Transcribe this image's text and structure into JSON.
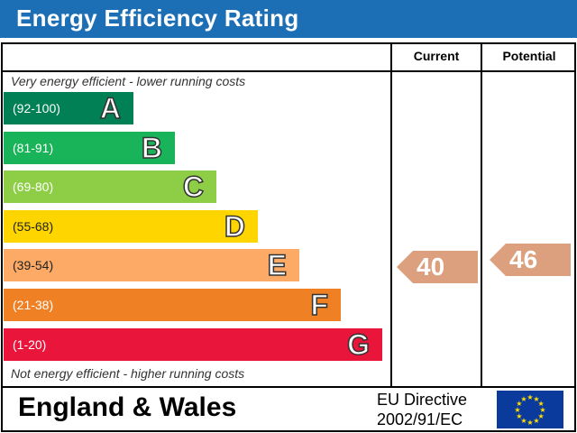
{
  "title": "Energy Efficiency Rating",
  "columns": {
    "current": "Current",
    "potential": "Potential"
  },
  "captions": {
    "top": "Very energy efficient - lower running costs",
    "bottom": "Not energy efficient - higher running costs"
  },
  "footer": {
    "region": "England & Wales",
    "directive_line1": "EU Directive",
    "directive_line2": "2002/91/EC"
  },
  "icons": {
    "flag": "eu-flag-icon"
  },
  "chart_data": {
    "type": "bar",
    "categories": [
      "A",
      "B",
      "C",
      "D",
      "E",
      "F",
      "G"
    ],
    "bands": [
      {
        "letter": "A",
        "range": "(92-100)",
        "min": 92,
        "max": 100,
        "color": "#008054"
      },
      {
        "letter": "B",
        "range": "(81-91)",
        "min": 81,
        "max": 91,
        "color": "#19b459"
      },
      {
        "letter": "C",
        "range": "(69-80)",
        "min": 69,
        "max": 80,
        "color": "#8dce46"
      },
      {
        "letter": "D",
        "range": "(55-68)",
        "min": 55,
        "max": 68,
        "color": "#ffd500"
      },
      {
        "letter": "E",
        "range": "(39-54)",
        "min": 39,
        "max": 54,
        "color": "#fcaa65"
      },
      {
        "letter": "F",
        "range": "(21-38)",
        "min": 21,
        "max": 38,
        "color": "#ef8023"
      },
      {
        "letter": "G",
        "range": "(1-20)",
        "min": 1,
        "max": 20,
        "color": "#e9153b"
      }
    ],
    "current": {
      "value": 40,
      "band": "E",
      "color": "#dca07e"
    },
    "potential": {
      "value": 46,
      "band": "E",
      "color": "#dca07e"
    }
  }
}
